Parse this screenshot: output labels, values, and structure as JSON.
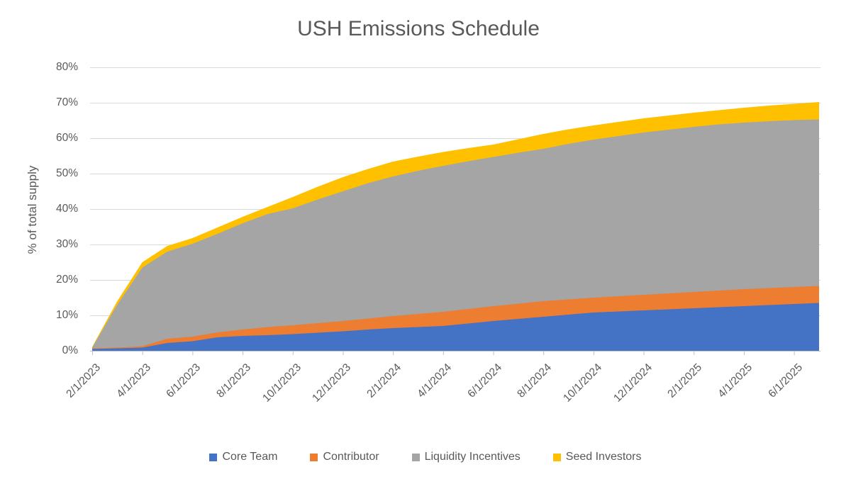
{
  "title": "USH Emissions Schedule",
  "chart_data": {
    "type": "area",
    "stacked": true,
    "title": "USH Emissions Schedule",
    "xlabel": "",
    "ylabel": "% of total supply",
    "ylim": [
      0,
      80
    ],
    "grid": true,
    "legend_position": "bottom",
    "grid_color": "#D9D9D9",
    "axis_color": "#BFBFBF",
    "label_color": "#595959",
    "y_tick_labels": [
      "0%",
      "10%",
      "20%",
      "30%",
      "40%",
      "50%",
      "60%",
      "70%",
      "80%"
    ],
    "x": [
      "2/1/2023",
      "3/1/2023",
      "4/1/2023",
      "5/1/2023",
      "6/1/2023",
      "7/1/2023",
      "8/1/2023",
      "9/1/2023",
      "10/1/2023",
      "11/1/2023",
      "12/1/2023",
      "1/1/2024",
      "2/1/2024",
      "3/1/2024",
      "4/1/2024",
      "5/1/2024",
      "6/1/2024",
      "7/1/2024",
      "8/1/2024",
      "9/1/2024",
      "10/1/2024",
      "11/1/2024",
      "12/1/2024",
      "1/1/2025",
      "2/1/2025",
      "3/1/2025",
      "4/1/2025",
      "5/1/2025",
      "6/1/2025",
      "7/1/2025"
    ],
    "x_tick_labels": [
      "2/1/2023",
      "4/1/2023",
      "6/1/2023",
      "8/1/2023",
      "10/1/2023",
      "12/1/2023",
      "2/1/2024",
      "4/1/2024",
      "6/1/2024",
      "8/1/2024",
      "10/1/2024",
      "12/1/2024",
      "2/1/2025",
      "4/1/2025",
      "6/1/2025"
    ],
    "series": [
      {
        "name": "Core Team",
        "color": "#4472C4",
        "values": [
          0.5,
          0.7,
          0.9,
          2.2,
          2.7,
          3.8,
          4.2,
          4.4,
          4.7,
          5.1,
          5.5,
          6.0,
          6.4,
          6.7,
          7.0,
          7.7,
          8.4,
          9.0,
          9.6,
          10.2,
          10.8,
          11.1,
          11.4,
          11.7,
          12.0,
          12.3,
          12.6,
          12.9,
          13.2,
          13.5
        ]
      },
      {
        "name": "Contributor",
        "color": "#ED7D31",
        "values": [
          0.2,
          0.2,
          0.4,
          1.2,
          1.3,
          1.4,
          1.8,
          2.3,
          2.5,
          2.7,
          2.9,
          3.1,
          3.4,
          3.7,
          4.0,
          4.1,
          4.2,
          4.3,
          4.4,
          4.3,
          4.2,
          4.3,
          4.4,
          4.5,
          4.6,
          4.7,
          4.8,
          4.8,
          4.8,
          4.8
        ]
      },
      {
        "name": "Liquidity Incentives",
        "color": "#A5A5A5",
        "values": [
          0.2,
          12.1,
          22.2,
          24.6,
          26.2,
          27.8,
          30.0,
          31.9,
          33.0,
          34.9,
          36.6,
          38.2,
          39.4,
          40.4,
          41.2,
          41.7,
          42.1,
          42.6,
          43.0,
          43.9,
          44.6,
          45.2,
          45.8,
          46.2,
          46.6,
          46.9,
          47.0,
          47.1,
          47.1,
          47.0
        ]
      },
      {
        "name": "Seed Investors",
        "color": "#FFC000",
        "values": [
          0.2,
          1.0,
          1.5,
          1.6,
          1.6,
          1.8,
          1.8,
          2.0,
          3.2,
          3.6,
          4.0,
          4.0,
          4.2,
          4.0,
          3.9,
          3.7,
          3.5,
          3.8,
          4.2,
          4.1,
          4.0,
          4.0,
          4.0,
          4.0,
          4.0,
          4.0,
          4.2,
          4.4,
          4.6,
          4.9
        ]
      }
    ]
  }
}
